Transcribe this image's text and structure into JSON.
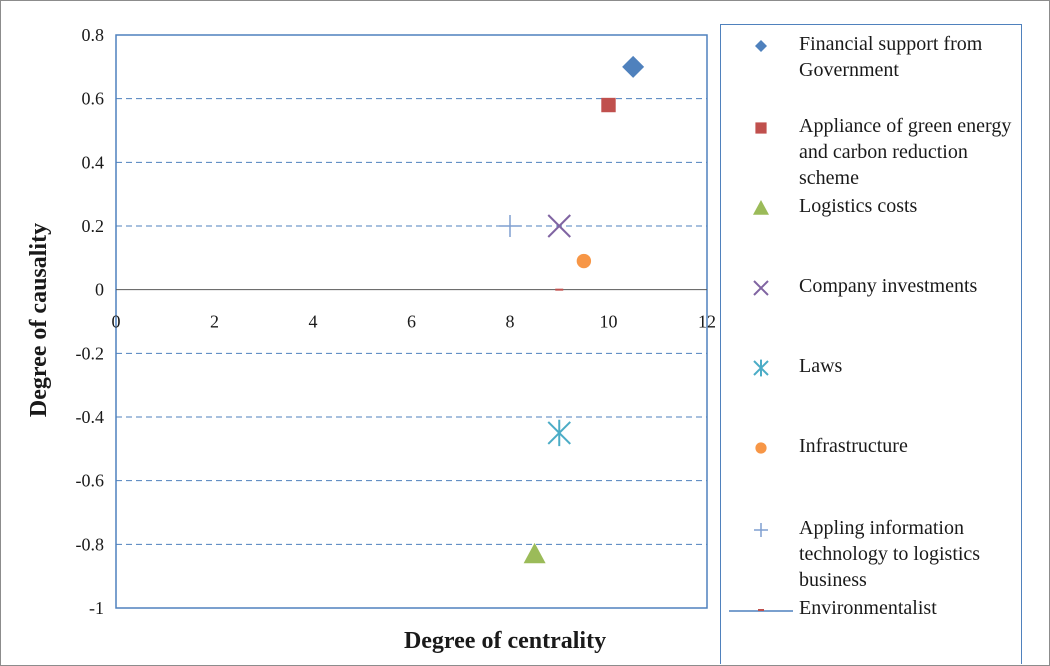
{
  "chart_data": {
    "type": "scatter",
    "xlabel": "Degree of centrality",
    "ylabel": "Degree of causality",
    "xlim": [
      0,
      12
    ],
    "ylim": [
      -1,
      0.8
    ],
    "x_ticks": [
      0,
      2,
      4,
      6,
      8,
      10,
      12
    ],
    "y_ticks": [
      0.8,
      0.6,
      0.4,
      0.2,
      0,
      -0.2,
      -0.4,
      -0.6,
      -0.8,
      -1
    ],
    "grid": "horizontal dashed",
    "legend_position": "right",
    "series": [
      {
        "name": "Financial support from Government",
        "marker": "diamond",
        "color": "#4f81bd",
        "x": 10.5,
        "y": 0.7
      },
      {
        "name": "Appliance of green energy and carbon reduction scheme",
        "marker": "square",
        "color": "#c0504d",
        "x": 10.0,
        "y": 0.58
      },
      {
        "name": "Logistics costs",
        "marker": "triangle",
        "color": "#9bbb59",
        "x": 8.5,
        "y": -0.83
      },
      {
        "name": "Company investments",
        "marker": "x",
        "color": "#8064a2",
        "x": 9.0,
        "y": 0.2
      },
      {
        "name": "Laws",
        "marker": "star",
        "color": "#4bacc6",
        "x": 9.0,
        "y": -0.45
      },
      {
        "name": "Infrastructure",
        "marker": "circle",
        "color": "#f79646",
        "x": 9.5,
        "y": 0.09
      },
      {
        "name": "Appling information technology to logistics business",
        "marker": "plus",
        "color": "#7f9fd1",
        "x": 8.0,
        "y": 0.2
      },
      {
        "name": "Environmentalist",
        "marker": "dash",
        "color": "#c0504d",
        "x": 9.0,
        "y": 0.0
      }
    ]
  }
}
